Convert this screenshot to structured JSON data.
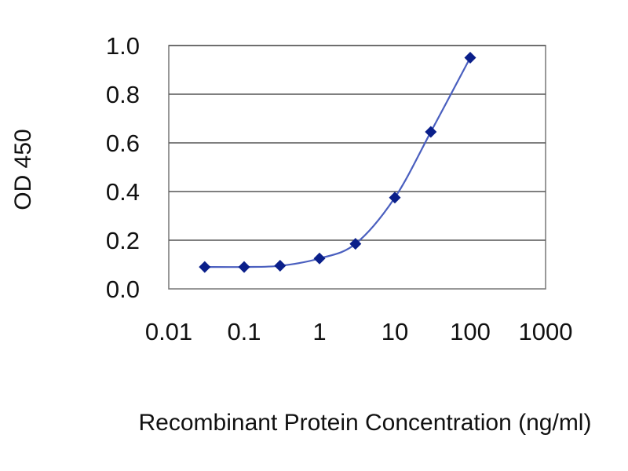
{
  "chart_data": {
    "type": "scatter",
    "title": "",
    "xlabel": "Recombinant Protein Concentration (ng/ml)",
    "ylabel": "OD 450",
    "x_scale": "log",
    "xlim": [
      0.01,
      1000
    ],
    "ylim": [
      0.0,
      1.0
    ],
    "x_ticks": [
      "0.01",
      "0.1",
      "1",
      "10",
      "100",
      "1000"
    ],
    "y_ticks": [
      "0.0",
      "0.2",
      "0.4",
      "0.6",
      "0.8",
      "1.0"
    ],
    "grid": "horizontal",
    "legend": "none",
    "series": [
      {
        "x": [
          0.03,
          0.1,
          0.3,
          1,
          3,
          10,
          30,
          100
        ],
        "y": [
          0.09,
          0.09,
          0.095,
          0.125,
          0.185,
          0.375,
          0.645,
          0.95
        ],
        "color": "#0a1f8a",
        "line_color": "#4a5fbf"
      }
    ]
  }
}
